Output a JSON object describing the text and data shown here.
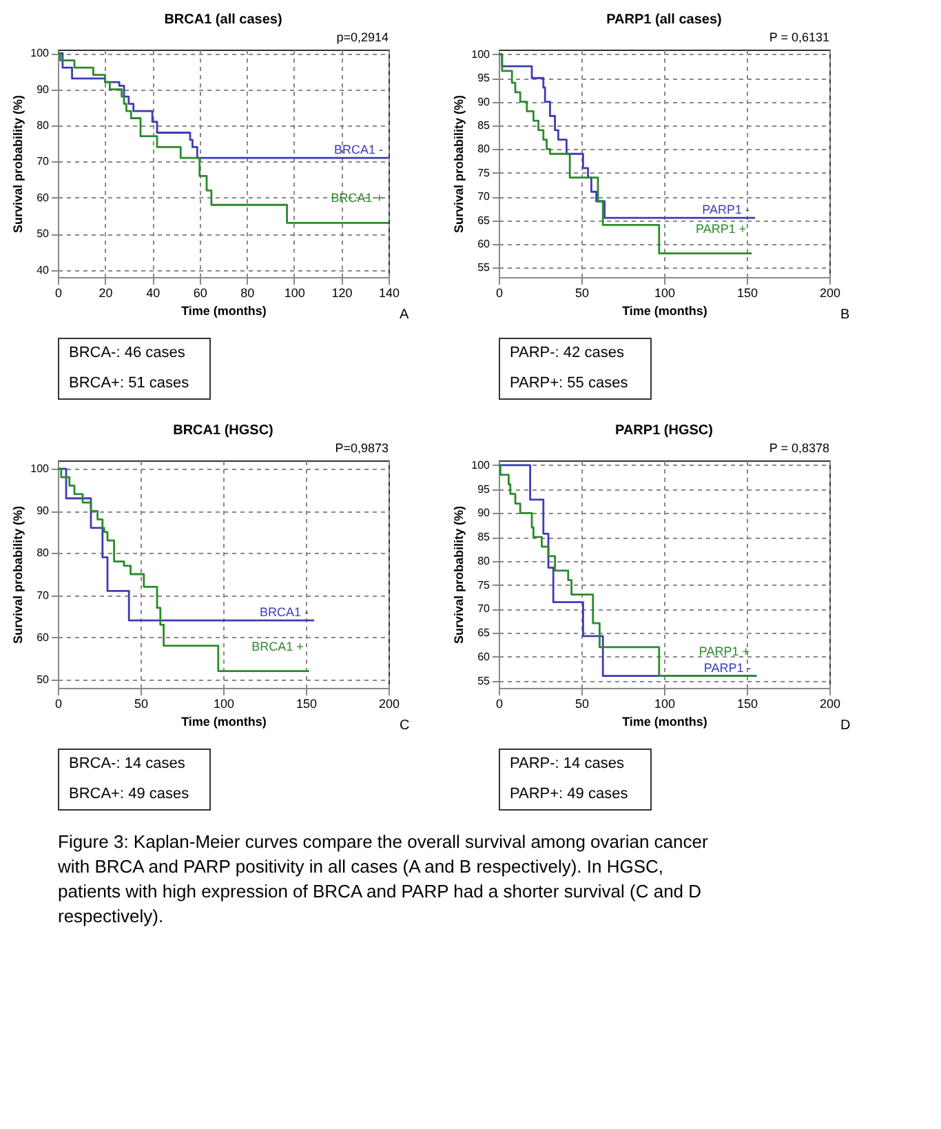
{
  "chart_data": [
    {
      "type": "step",
      "title": "BRCA1 (all cases)",
      "xlabel": "Time (months)",
      "ylabel": "Survival probability (%)",
      "xlim": [
        0,
        140
      ],
      "xticks": [
        0,
        20,
        40,
        60,
        80,
        100,
        120,
        140
      ],
      "ylim": [
        38,
        101
      ],
      "yticks": [
        40,
        50,
        60,
        70,
        80,
        90,
        100
      ],
      "grid": true,
      "line_style": "solid",
      "annotations": [
        "p=0,2914",
        "A",
        "BRCA-: 46 cases",
        "BRCA+: 51 cases"
      ],
      "series": [
        {
          "name": "BRCA1 -",
          "color": "#3c3cb4",
          "x": [
            0,
            2,
            6,
            20,
            26,
            28,
            30,
            32,
            40,
            42,
            56,
            57,
            59,
            140
          ],
          "values": [
            100,
            96,
            93,
            92,
            91,
            88,
            86,
            84,
            81,
            78,
            76,
            74,
            71,
            71
          ]
        },
        {
          "name": "BRCA1 +",
          "color": "#2a8a2a",
          "x": [
            0,
            1,
            7,
            15,
            20,
            22,
            27,
            28,
            29,
            31,
            35,
            42,
            52,
            60,
            63,
            65,
            97,
            140
          ],
          "values": [
            100,
            98,
            96,
            94,
            92,
            90,
            88,
            86,
            84,
            82,
            77,
            74,
            71,
            66,
            62,
            58,
            53,
            53
          ]
        }
      ]
    },
    {
      "type": "step",
      "title": "PARP1 (all cases)",
      "xlabel": "Time (months)",
      "ylabel": "Survival probability (%)",
      "xlim": [
        0,
        200
      ],
      "xticks": [
        0,
        50,
        100,
        150,
        200
      ],
      "ylim": [
        53,
        101
      ],
      "yticks": [
        55,
        60,
        65,
        70,
        75,
        80,
        85,
        90,
        95,
        100
      ],
      "grid": true,
      "line_style": "solid",
      "annotations": [
        "P = 0,6131",
        "B",
        "PARP-: 42 cases",
        "PARP+: 55 cases"
      ],
      "series": [
        {
          "name": "PARP1 -",
          "color": "#3c3cb4",
          "x": [
            0,
            2,
            20,
            27,
            28,
            31,
            34,
            36,
            41,
            51,
            54,
            56,
            59,
            64,
            155
          ],
          "values": [
            100,
            97.5,
            95,
            93,
            90,
            87,
            84,
            82,
            79,
            76,
            74,
            71,
            69,
            65.5,
            65.5
          ]
        },
        {
          "name": "PARP1 +",
          "color": "#2a8a2a",
          "x": [
            0,
            2,
            8,
            10,
            13,
            17,
            21,
            24,
            27,
            29,
            31,
            43,
            60,
            63,
            97,
            153
          ],
          "values": [
            100,
            96.5,
            94,
            92,
            90,
            88,
            86,
            84,
            82,
            80,
            79,
            74,
            69,
            64,
            58,
            58
          ]
        }
      ]
    },
    {
      "type": "step",
      "title": "BRCA1 (HGSC)",
      "xlabel": "Time (months)",
      "ylabel": "Survival probability (%)",
      "xlim": [
        0,
        200
      ],
      "xticks": [
        0,
        50,
        100,
        150,
        200
      ],
      "ylim": [
        48,
        102
      ],
      "yticks": [
        50,
        60,
        70,
        80,
        90,
        100
      ],
      "grid": true,
      "line_style": "solid",
      "annotations": [
        "P=0,9873",
        "C",
        "BRCA-: 14 cases",
        "BRCA+: 49 cases"
      ],
      "series": [
        {
          "name": "BRCA1 -",
          "color": "#3c3cb4",
          "x": [
            0,
            5,
            20,
            27,
            30,
            43,
            155
          ],
          "values": [
            100,
            93,
            86,
            79,
            71,
            64,
            64
          ]
        },
        {
          "name": "BRCA1 +",
          "color": "#2a8a2a",
          "x": [
            0,
            2,
            7,
            10,
            15,
            20,
            24,
            27,
            28,
            30,
            34,
            40,
            44,
            52,
            60,
            62,
            64,
            97,
            152
          ],
          "values": [
            100,
            98,
            96,
            94,
            92,
            90,
            88,
            86,
            85,
            83,
            78,
            77,
            75,
            72,
            67,
            63,
            58,
            52,
            52
          ]
        }
      ]
    },
    {
      "type": "step",
      "title": "PARP1 (HGSC)",
      "xlabel": "Time (months)",
      "ylabel": "Survival probability (%)",
      "xlim": [
        0,
        200
      ],
      "xticks": [
        0,
        50,
        100,
        150,
        200
      ],
      "ylim": [
        53.5,
        101
      ],
      "yticks": [
        55,
        60,
        65,
        70,
        75,
        80,
        85,
        90,
        95,
        100
      ],
      "grid": true,
      "line_style": "solid",
      "annotations": [
        "P = 0,8378",
        "D",
        "PARP-: 14 cases",
        "PARP+: 49 cases",
        "Figure 3: Kaplan-Meier curves compare the overall survival among ovarian cancer with BRCA and PARP positivity in all cases (A and B respectively). In HGSC, patients with high expression of BRCA and PARP had a shorter survival (C and D respectively)."
      ],
      "series": [
        {
          "name": "PARP1 -",
          "color": "#3c3cb4",
          "x": [
            0,
            19,
            27,
            30,
            33,
            51,
            63,
            156
          ],
          "values": [
            100,
            92.8,
            85.7,
            78.6,
            71.4,
            64.3,
            56,
            56
          ]
        },
        {
          "name": "PARP1 +",
          "color": "#2a8a2a",
          "x": [
            0,
            1,
            6,
            7,
            10,
            13,
            20,
            21,
            26,
            30,
            34,
            42,
            44,
            57,
            61,
            97,
            155
          ],
          "values": [
            100,
            98,
            96,
            94,
            92,
            90,
            87,
            85,
            83,
            81,
            78,
            76,
            73,
            67,
            62,
            56,
            56
          ]
        }
      ]
    }
  ]
}
